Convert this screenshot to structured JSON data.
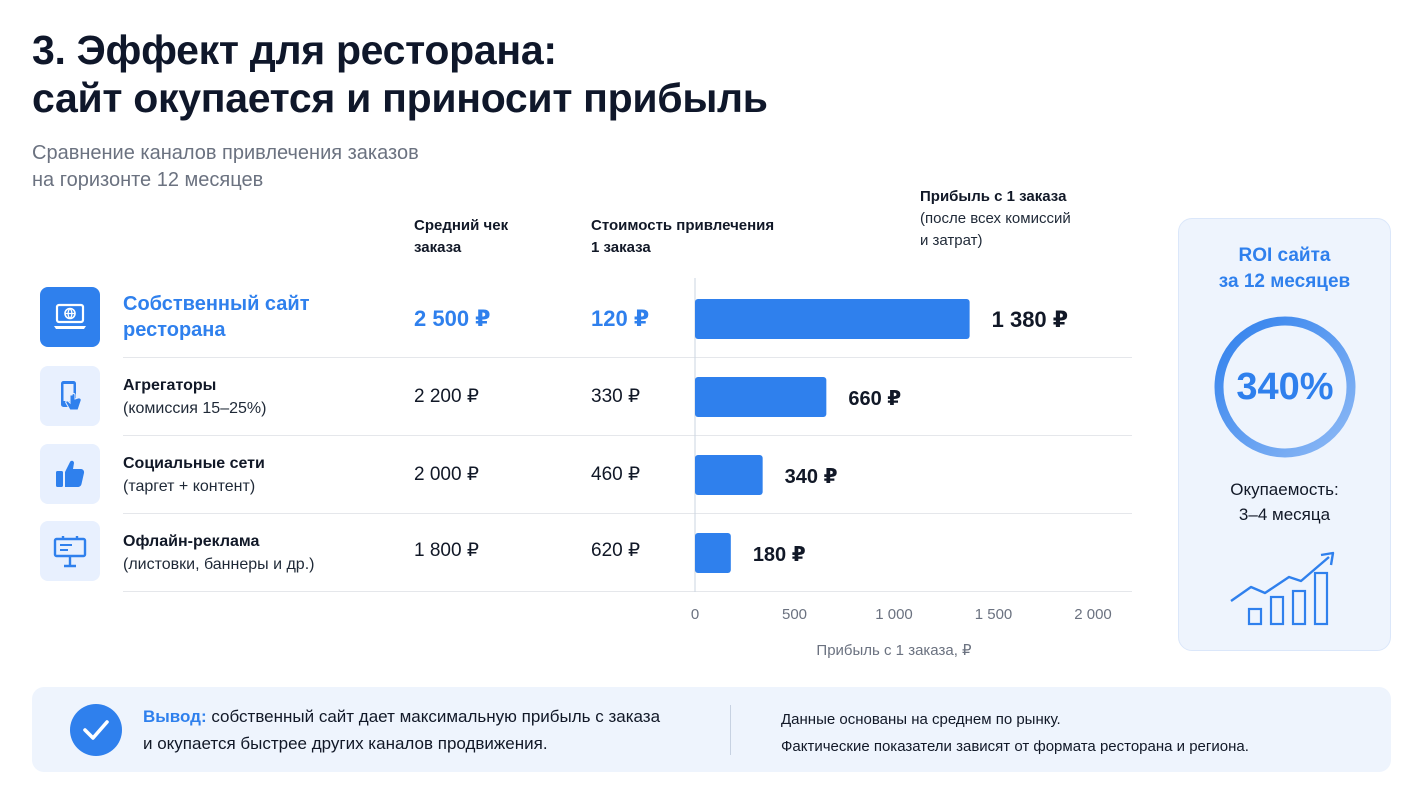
{
  "title_line1": "3. Эффект для ресторана:",
  "title_line2": "сайт окупается и приносит прибыль",
  "subtitle_line1": "Сравнение каналов привлечения заказов",
  "subtitle_line2": "на горизонте 12 месяцев",
  "columns": {
    "avg_check": [
      "Средний чек",
      "заказа"
    ],
    "acquisition_cost": [
      "Стоимость привлечения",
      "1 заказа"
    ],
    "profit": [
      "Прибыль с 1 заказа",
      "(после всех комиссий",
      "и затрат)"
    ]
  },
  "rows": [
    {
      "name1": "Собственный сайт",
      "name2": "ресторана",
      "avg": "2 500 ₽",
      "cost": "120 ₽",
      "profit_label": "1 380 ₽",
      "icon": "laptop-globe-icon"
    },
    {
      "name1": "Агрегаторы",
      "name2": "(комиссия 15–25%)",
      "avg": "2 200 ₽",
      "cost": "330 ₽",
      "profit_label": "660 ₽",
      "icon": "phone-tap-icon"
    },
    {
      "name1": "Социальные сети",
      "name2": "(таргет + контент)",
      "avg": "2 000 ₽",
      "cost": "460 ₽",
      "profit_label": "340 ₽",
      "icon": "thumbs-up-icon"
    },
    {
      "name1": "Офлайн-реклама",
      "name2": "(листовки, баннеры и др.)",
      "avg": "1 800 ₽",
      "cost": "620 ₽",
      "profit_label": "180 ₽",
      "icon": "billboard-icon"
    }
  ],
  "chart_data": {
    "type": "bar",
    "orientation": "horizontal",
    "categories": [
      "Собственный сайт ресторана",
      "Агрегаторы",
      "Социальные сети",
      "Офлайн-реклама"
    ],
    "values": [
      1380,
      660,
      340,
      180
    ],
    "xlabel": "Прибыль с 1 заказа, ₽",
    "xlim": [
      0,
      2000
    ],
    "ticks": [
      0,
      500,
      1000,
      1500,
      2000
    ],
    "tick_labels": [
      "0",
      "500",
      "1 000",
      "1 500",
      "2 000"
    ],
    "grid": false,
    "bar_color": "#2f80ed"
  },
  "roi": {
    "title_line1": "ROI сайта",
    "title_line2": "за 12 месяцев",
    "value": "340%",
    "payback_line1": "Окупаемость:",
    "payback_line2": "3–4 месяца",
    "icon": "growth-chart-icon"
  },
  "footer": {
    "label": "Вывод:",
    "text_line1": " собственный сайт дает максимальную прибыль с заказа",
    "text_line2": "и окупается быстрее других каналов продвижения.",
    "note_line1": "Данные основаны на среднем по рынку.",
    "note_line2": "Фактические показатели зависят от формата ресторана и региона."
  },
  "colors": {
    "accent": "#2f80ed",
    "panel_bg": "#eef4fd",
    "text": "#111827",
    "muted": "#6b7280"
  }
}
